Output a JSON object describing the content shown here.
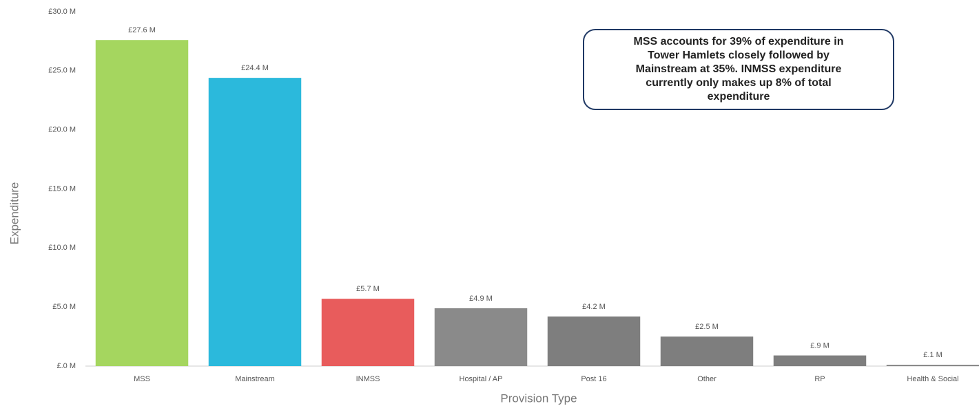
{
  "chart_data": {
    "type": "bar",
    "categories": [
      "MSS",
      "Mainstream",
      "INMSS",
      "Hospital / AP",
      "Post 16",
      "Other",
      "RP",
      "Health & Social"
    ],
    "values": [
      27.6,
      24.4,
      5.7,
      4.9,
      4.2,
      2.5,
      0.9,
      0.1
    ],
    "value_labels": [
      "£27.6 M",
      "£24.4 M",
      "£5.7 M",
      "£4.9 M",
      "£4.2 M",
      "£2.5 M",
      "£.9 M",
      "£.1 M"
    ],
    "colors": [
      "#a5d65f",
      "#2bb9dc",
      "#e85c5c",
      "#8a8a8a",
      "#7e7e7e",
      "#7e7e7e",
      "#7e7e7e",
      "#7e7e7e"
    ],
    "ylim": [
      0,
      30
    ],
    "yticks": [
      {
        "value": 0,
        "label": "£.0 M"
      },
      {
        "value": 5,
        "label": "£5.0 M"
      },
      {
        "value": 10,
        "label": "£10.0 M"
      },
      {
        "value": 15,
        "label": "£15.0 M"
      },
      {
        "value": 20,
        "label": "£20.0 M"
      },
      {
        "value": 25,
        "label": "£25.0 M"
      },
      {
        "value": 30,
        "label": "£30.0 M"
      }
    ],
    "xlabel": "Provision Type",
    "ylabel": "Expenditure",
    "grid": false,
    "annotation": [
      "MSS accounts for 39% of expenditure in",
      "Tower Hamlets closely followed by",
      "Mainstream at 35%. INMSS expenditure",
      "currently only makes up 8% of total",
      "expenditure"
    ]
  }
}
